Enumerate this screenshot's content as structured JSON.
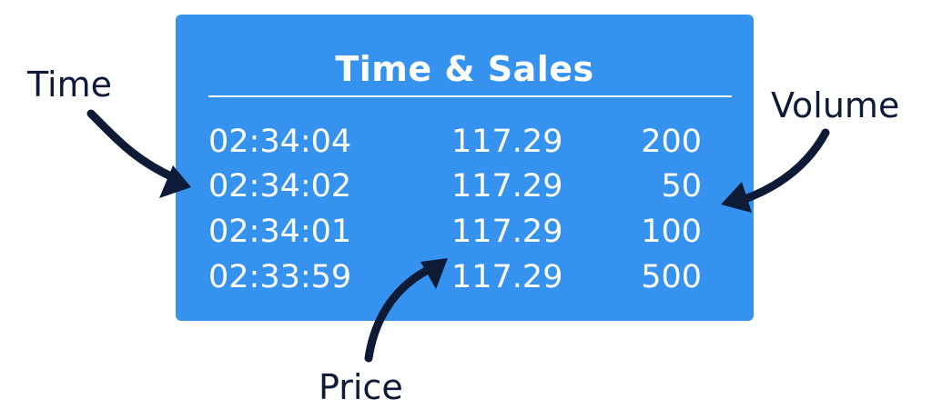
{
  "panel": {
    "title": "Time & Sales",
    "trades": [
      {
        "time": "02:34:04",
        "price": "117.29",
        "volume": "200"
      },
      {
        "time": "02:34:02",
        "price": "117.29",
        "volume": "50"
      },
      {
        "time": "02:34:01",
        "price": "117.29",
        "volume": "100"
      },
      {
        "time": "02:33:59",
        "price": "117.29",
        "volume": "500"
      }
    ]
  },
  "callouts": {
    "time": "Time",
    "volume": "Volume",
    "price": "Price"
  },
  "colors": {
    "panel_background": "#3592ee",
    "panel_text": "#ffffff",
    "callout_text": "#0d1b36",
    "arrow": "#0d1b36"
  }
}
